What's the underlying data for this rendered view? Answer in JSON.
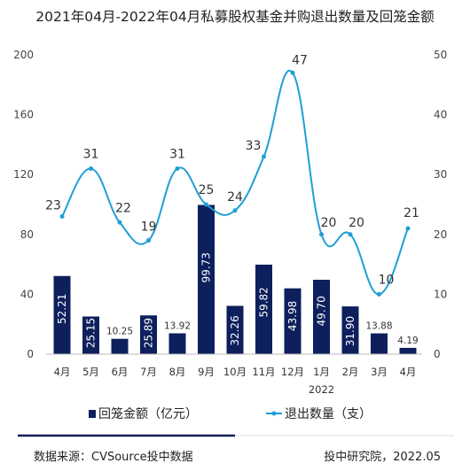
{
  "chart_data": {
    "type": "bar+line",
    "title": "2021年04月-2022年04月私募股权基金并购退出数量及回笼金额",
    "categories": [
      "4月",
      "5月",
      "6月",
      "7月",
      "8月",
      "9月",
      "10月",
      "11月",
      "12月",
      "1月",
      "2月",
      "3月",
      "4月"
    ],
    "year_label": "2022",
    "series": [
      {
        "name": "回笼金额（亿元）",
        "type": "bar",
        "axis": "left",
        "values": [
          52.21,
          25.15,
          10.25,
          25.89,
          13.92,
          99.73,
          32.26,
          59.82,
          43.98,
          49.7,
          31.9,
          13.88,
          4.19
        ],
        "labels": [
          "52.21",
          "25.15",
          "10.25",
          "25.89",
          "13.92",
          "99.73",
          "32.26",
          "59.82",
          "43.98",
          "49.70",
          "31.90",
          "13.88",
          "4.19"
        ],
        "color": "#0d1f5c"
      },
      {
        "name": "退出数量（支）",
        "type": "line",
        "axis": "right",
        "values": [
          23,
          31,
          22,
          19,
          31,
          25,
          24,
          33,
          47,
          20,
          20,
          10,
          21
        ],
        "color": "#1f9fd6"
      }
    ],
    "y_left": {
      "min": 0,
      "max": 200,
      "ticks": [
        "0",
        "40",
        "80",
        "120",
        "160",
        "200"
      ]
    },
    "y_right": {
      "min": 0,
      "max": 50,
      "ticks": [
        "0",
        "10",
        "20",
        "30",
        "40",
        "50"
      ]
    },
    "legend_position": "bottom",
    "grid": false
  },
  "footer": {
    "source": "数据来源：CVSource投中数据",
    "org": "投中研究院，2022.05"
  }
}
